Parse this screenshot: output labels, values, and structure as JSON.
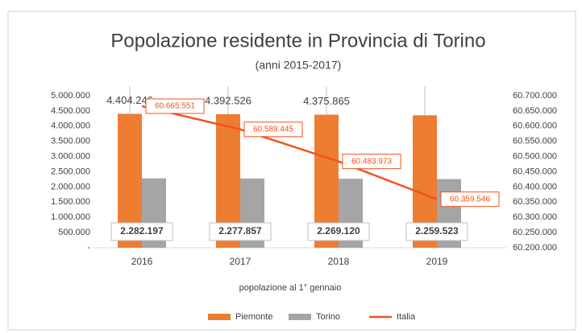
{
  "chart_data": {
    "type": "bar-line",
    "title": "Popolazione residente in Provincia di Torino",
    "subtitle": "(anni 2015-2017)",
    "x_label": "popolazione al 1° gennaio",
    "categories": [
      "2016",
      "2017",
      "2018",
      "2019"
    ],
    "series": [
      {
        "name": "Piemonte",
        "type": "bar",
        "color": "#ed7d31",
        "values": [
          4404246,
          4392526,
          4375865,
          4356406
        ],
        "value_labels": [
          "4.404.246",
          "4.392.526",
          "4.375.865",
          null
        ]
      },
      {
        "name": "Torino",
        "type": "bar",
        "color": "#a5a5a5",
        "values": [
          2282197,
          2277857,
          2269120,
          2259523
        ],
        "value_labels": [
          "2.282.197",
          "2.277.857",
          "2.269.120",
          "2.259.523"
        ]
      },
      {
        "name": "Italia",
        "type": "line",
        "axis": "y2",
        "color": "#f4511e",
        "values": [
          60665551,
          60589445,
          60483973,
          60359546
        ],
        "value_labels": [
          "60.665.551",
          "60.589.445",
          "60.483.973",
          "60.359.546"
        ]
      }
    ],
    "ylim": [
      0,
      5000000
    ],
    "yticks": [
      {
        "value": 0,
        "label": "-"
      },
      {
        "value": 500000,
        "label": "500.000"
      },
      {
        "value": 1000000,
        "label": "1.000.000"
      },
      {
        "value": 1500000,
        "label": "1.500.000"
      },
      {
        "value": 2000000,
        "label": "2.000.000"
      },
      {
        "value": 2500000,
        "label": "2.500.000"
      },
      {
        "value": 3000000,
        "label": "3.000.000"
      },
      {
        "value": 3500000,
        "label": "3.500.000"
      },
      {
        "value": 4000000,
        "label": "4.000.000"
      },
      {
        "value": 4500000,
        "label": "4.500.000"
      },
      {
        "value": 5000000,
        "label": "5.000.000"
      }
    ],
    "y2lim": [
      60200000,
      60700000
    ],
    "y2ticks": [
      {
        "value": 60200000,
        "label": "60.200.000"
      },
      {
        "value": 60250000,
        "label": "60.250.000"
      },
      {
        "value": 60300000,
        "label": "60.300.000"
      },
      {
        "value": 60350000,
        "label": "60.350.000"
      },
      {
        "value": 60400000,
        "label": "60.400.000"
      },
      {
        "value": 60450000,
        "label": "60.450.000"
      },
      {
        "value": 60500000,
        "label": "60.500.000"
      },
      {
        "value": 60550000,
        "label": "60.550.000"
      },
      {
        "value": 60600000,
        "label": "60.600.000"
      },
      {
        "value": 60650000,
        "label": "60.650.000"
      },
      {
        "value": 60700000,
        "label": "60.700.000"
      }
    ],
    "legend": "bottom"
  }
}
